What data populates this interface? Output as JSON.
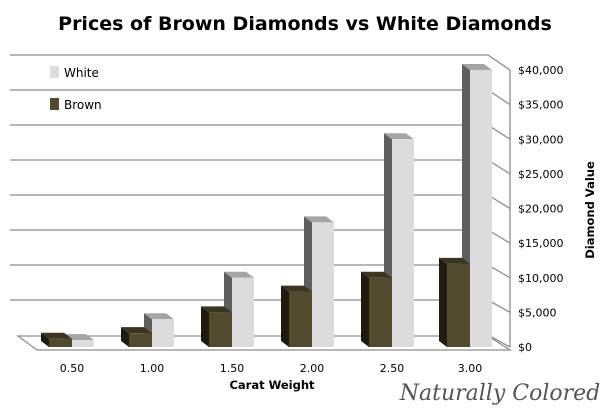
{
  "chart_data": {
    "type": "bar",
    "title": "Prices of Brown Diamonds vs White Diamonds",
    "xlabel": "Carat Weight",
    "ylabel": "Diamond Value",
    "categories": [
      "0.50",
      "1.00",
      "1.50",
      "2.00",
      "2.50",
      "3.00"
    ],
    "series": [
      {
        "name": "Brown",
        "color": "#514a2e",
        "values": [
          1200,
          2000,
          5000,
          8000,
          10000,
          12000
        ]
      },
      {
        "name": "White",
        "color": "#dcdcdc",
        "values": [
          1000,
          4000,
          10000,
          18000,
          30000,
          40000
        ]
      }
    ],
    "ylim": [
      0,
      40000
    ],
    "yticks": [
      "$0",
      "$5,000",
      "$10,000",
      "$15,000",
      "$20,000",
      "$25,000",
      "$30,000",
      "$35,000",
      "$40,000"
    ],
    "y_axis_side": "right",
    "grid": true,
    "legend": {
      "position": "top-left",
      "items": [
        "White",
        "Brown"
      ]
    },
    "style": "3d-column"
  },
  "watermark": "Naturally Colored"
}
